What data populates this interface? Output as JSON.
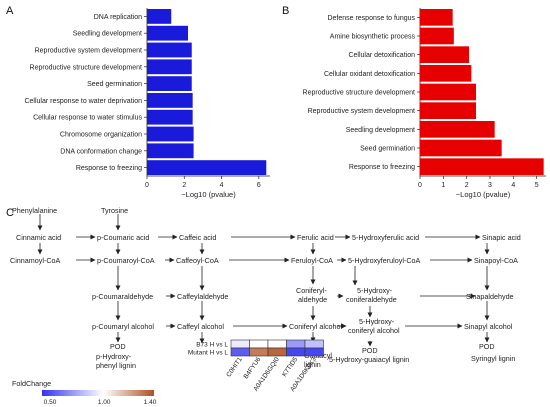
{
  "chart_data": [
    {
      "panel": "A",
      "type": "bar",
      "orientation": "horizontal",
      "color": "#1a1adb",
      "categories": [
        "DNA replication",
        "Seedling development",
        "Reproductive system development",
        "Reproductive structure development",
        "Seed germination",
        "Cellular response to water deprivation",
        "Cellular response to water stimulus",
        "Chromosome organization",
        "DNA conformation change",
        "Response to freezing"
      ],
      "values": [
        1.3,
        2.2,
        2.4,
        2.4,
        2.4,
        2.45,
        2.45,
        2.5,
        2.5,
        6.4
      ],
      "xlabel": "−Log10 (pvalue)",
      "xlim": [
        0,
        6.6
      ],
      "xticks": [
        "0",
        "2",
        "4",
        "6"
      ]
    },
    {
      "panel": "B",
      "type": "bar",
      "orientation": "horizontal",
      "color": "#e60000",
      "categories": [
        "Defense response to fungus",
        "Amine biosynthetic process",
        "Cellular detoxification",
        "Cellular oxidant detoxification",
        "Reproductive structure development",
        "Reproductive system development",
        "Seedling development",
        "Seed germination",
        "Response to freezing"
      ],
      "values": [
        1.4,
        1.45,
        2.1,
        2.2,
        2.4,
        2.4,
        3.2,
        3.5,
        5.3
      ],
      "xlabel": "−Log10 (pvalue)",
      "xlim": [
        0,
        5.4
      ],
      "xticks": [
        "0",
        "1",
        "2",
        "3",
        "4",
        "5"
      ]
    },
    {
      "panel": "C",
      "type": "heatmap",
      "rows": [
        "B73 H vs L",
        "Mutant H vs L"
      ],
      "columns": [
        "C0HIT1",
        "B4FYU6",
        "A0A1D6GQI0",
        "K7TID5",
        "A0A1D6K9K3"
      ],
      "values": [
        [
          0.95,
          1.0,
          1.0,
          0.75,
          0.85
        ],
        [
          0.6,
          1.3,
          1.35,
          0.55,
          0.55
        ]
      ],
      "legend_title": "FoldChange",
      "legend_ticks": [
        "0.50",
        "1.00",
        "1.40"
      ],
      "colors": {
        "low": "#3333ee",
        "mid": "#ffffff",
        "high": "#b05020"
      }
    }
  ],
  "panel_labels": {
    "a": "A",
    "b": "B",
    "c": "C"
  },
  "pathway": {
    "phenylalanine": "Phenylalanine",
    "tyrosine": "Tyrosine",
    "cinnamic_acid": "Cinnamic acid",
    "p_coumaric_acid": "p-Coumaric acid",
    "caffeic_acid": "Caffeic acid",
    "ferulic_acid": "Ferulic acid",
    "hydroxyferulic_acid": "5-Hydroxyferulic acid",
    "sinapic_acid": "Sinapic acid",
    "cinnamoyl_coa": "Cinnamoyl-CoA",
    "p_coumaroyl_coa": "p-Coumaroyl-CoA",
    "caffeoyl_coa": "Caffeoyl-CoA",
    "feruloyl_coa": "Feruloyl-CoA",
    "hydroxyferuloyl_coa": "5-Hydroxyferuloyl-CoA",
    "sinapoyl_coa": "Sinapoyl-CoA",
    "p_coumaraldehyde": "p-Coumaraldehyde",
    "caffeylaldehyde": "Caffeylaldehyde",
    "coniferylaldehyde_1": "Coniferyl-",
    "coniferylaldehyde_2": "aldehyde",
    "hydroxyconiferaldehyde_1": "5-Hydroxy-",
    "hydroxyconiferaldehyde_2": "coniferaldehyde",
    "sinapaldehyde": "Sinapaldehyde",
    "p_coumaryl_alcohol": "p-Coumaryl alcohol",
    "caffeyl_alcohol": "Caffeyl alcohol",
    "coniferyl_alcohol": "Coniferyl alcohol",
    "hydroxyconiferyl_alcohol_1": "5-Hydroxy-",
    "hydroxyconiferyl_alcohol_2": "coniferyl alcohol",
    "sinapyl_alcohol": "Sinapyl alcohol",
    "pod": "POD",
    "p_hydroxyphenyl_lignin_1": "p-Hydroxy-",
    "p_hydroxyphenyl_lignin_2": "phenyl lignin",
    "guaiacyl_lignin_1": "Guaiacyl",
    "guaiacyl_lignin_2": "lignin",
    "hydroxy_guaiacyl_lignin": "5-Hydroxy-guaiacyl lignin",
    "syringyl_lignin": "Syringyl lignin"
  }
}
